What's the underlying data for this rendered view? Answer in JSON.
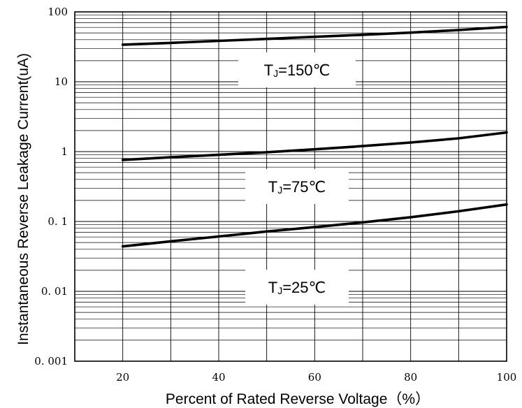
{
  "chart_data": {
    "type": "line",
    "title": "",
    "xlabel": "Percent of Rated Reverse Voltage（%）",
    "ylabel": "Instantaneous Reverse Leakage Current(uA)",
    "xlim": [
      10,
      100
    ],
    "ylim": [
      0.001,
      100
    ],
    "y_scale": "log",
    "grid": true,
    "x_ticks": [
      20,
      40,
      60,
      80,
      100
    ],
    "x_tick_labels": [
      "20",
      "40",
      "60",
      "80",
      "100"
    ],
    "y_ticks": [
      0.001,
      0.01,
      0.1,
      1,
      10,
      100
    ],
    "y_tick_labels": [
      "0. 001",
      "0. 01",
      "0. 1",
      "1",
      "10",
      "100"
    ],
    "series": [
      {
        "name": "TJ=150℃",
        "label_main": "T",
        "label_sub": "J",
        "label_rest": "=150℃",
        "x": [
          20,
          30,
          40,
          50,
          60,
          70,
          80,
          90,
          100
        ],
        "values": [
          34,
          36,
          38.5,
          41,
          44,
          47,
          50.5,
          55,
          61
        ]
      },
      {
        "name": "TJ=75℃",
        "label_main": "T",
        "label_sub": "J",
        "label_rest": "=75℃",
        "x": [
          20,
          30,
          40,
          50,
          60,
          70,
          80,
          90,
          100
        ],
        "values": [
          0.76,
          0.83,
          0.9,
          0.98,
          1.08,
          1.2,
          1.35,
          1.55,
          1.88
        ]
      },
      {
        "name": "TJ=25℃",
        "label_main": "T",
        "label_sub": "J",
        "label_rest": "=25℃",
        "x": [
          20,
          30,
          40,
          50,
          60,
          70,
          80,
          90,
          100
        ],
        "values": [
          0.044,
          0.052,
          0.061,
          0.072,
          0.083,
          0.097,
          0.115,
          0.14,
          0.175
        ]
      }
    ],
    "line_color": "#000000",
    "grid_color": "#000000",
    "background": "#ffffff"
  }
}
